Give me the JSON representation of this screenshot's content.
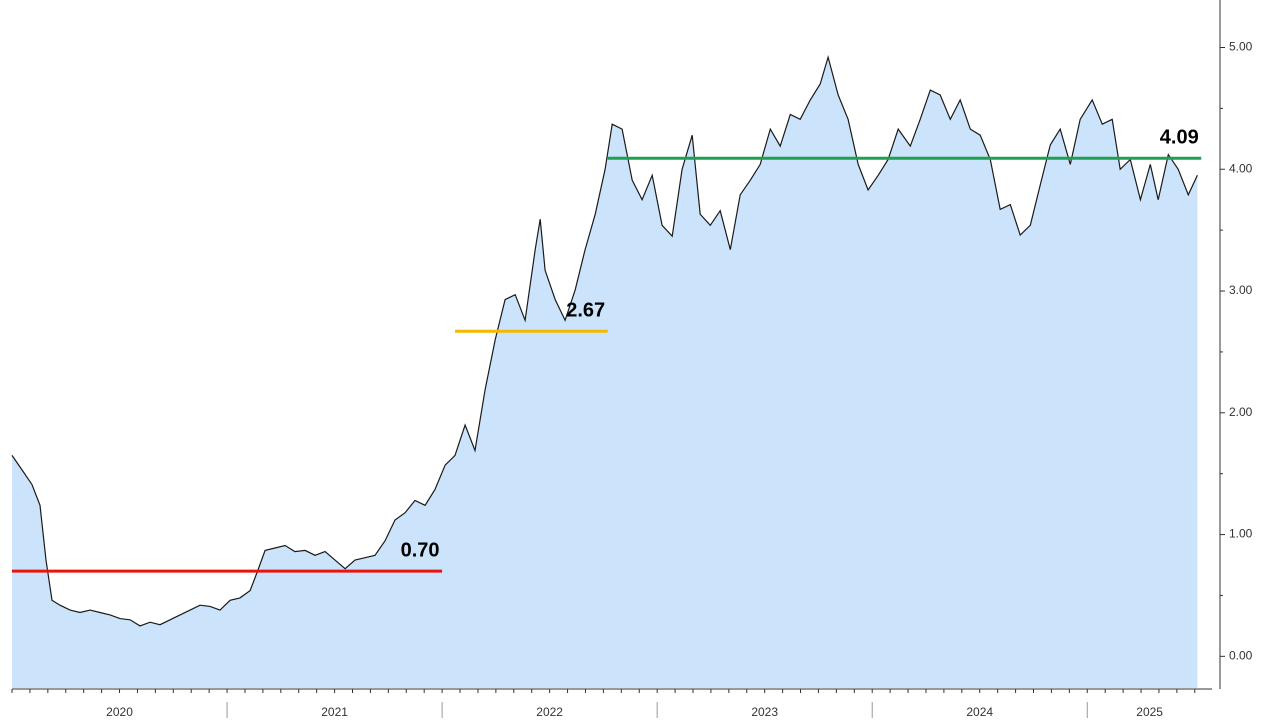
{
  "chart_data": {
    "type": "area",
    "categories": [
      "2020",
      "2021",
      "2022",
      "2023",
      "2024",
      "2025"
    ],
    "xlim": [
      2020,
      2025.58
    ],
    "ylim": [
      -0.26,
      5.39
    ],
    "yticks": [
      {
        "value": 0,
        "label": "0.00"
      },
      {
        "value": 1,
        "label": "1.00"
      },
      {
        "value": 2,
        "label": "2.00"
      },
      {
        "value": 3,
        "label": "3.00"
      },
      {
        "value": 4,
        "label": "4.00"
      },
      {
        "value": 5,
        "label": "5.00"
      }
    ],
    "series": [
      {
        "color": "#1a1a1a",
        "fill": "#cce4fb",
        "x": [
          2020.0,
          2020.047,
          2020.093,
          2020.13,
          2020.158,
          2020.186,
          2020.223,
          2020.27,
          2020.316,
          2020.363,
          2020.409,
          2020.456,
          2020.502,
          2020.549,
          2020.595,
          2020.642,
          2020.688,
          2020.735,
          2020.781,
          2020.828,
          2020.874,
          2020.921,
          2020.967,
          2021.014,
          2021.06,
          2021.107,
          2021.144,
          2021.177,
          2021.223,
          2021.27,
          2021.316,
          2021.363,
          2021.409,
          2021.456,
          2021.502,
          2021.549,
          2021.595,
          2021.642,
          2021.688,
          2021.735,
          2021.781,
          2021.828,
          2021.874,
          2021.921,
          2021.967,
          2022.014,
          2022.06,
          2022.107,
          2022.153,
          2022.2,
          2022.247,
          2022.293,
          2022.34,
          2022.386,
          2022.433,
          2022.456,
          2022.479,
          2022.526,
          2022.572,
          2022.619,
          2022.665,
          2022.712,
          2022.758,
          2022.791,
          2022.837,
          2022.884,
          2022.93,
          2022.977,
          2023.023,
          2023.07,
          2023.116,
          2023.163,
          2023.2,
          2023.247,
          2023.293,
          2023.34,
          2023.386,
          2023.433,
          2023.479,
          2023.526,
          2023.572,
          2023.619,
          2023.665,
          2023.712,
          2023.758,
          2023.795,
          2023.842,
          2023.888,
          2023.935,
          2023.981,
          2024.028,
          2024.074,
          2024.121,
          2024.177,
          2024.223,
          2024.27,
          2024.316,
          2024.363,
          2024.409,
          2024.456,
          2024.502,
          2024.549,
          2024.595,
          2024.642,
          2024.688,
          2024.735,
          2024.781,
          2024.828,
          2024.874,
          2024.921,
          2024.967,
          2025.023,
          2025.07,
          2025.116,
          2025.153,
          2025.2,
          2025.247,
          2025.293,
          2025.33,
          2025.377,
          2025.423,
          2025.47,
          2025.512
        ],
        "values": [
          1.65,
          1.53,
          1.41,
          1.24,
          0.79,
          0.46,
          0.42,
          0.38,
          0.36,
          0.38,
          0.36,
          0.34,
          0.31,
          0.3,
          0.25,
          0.28,
          0.26,
          0.3,
          0.34,
          0.38,
          0.42,
          0.41,
          0.38,
          0.46,
          0.48,
          0.54,
          0.71,
          0.87,
          0.89,
          0.91,
          0.86,
          0.87,
          0.83,
          0.86,
          0.79,
          0.72,
          0.79,
          0.81,
          0.83,
          0.95,
          1.12,
          1.18,
          1.28,
          1.24,
          1.37,
          1.57,
          1.65,
          1.9,
          1.69,
          2.19,
          2.6,
          2.93,
          2.97,
          2.76,
          3.34,
          3.59,
          3.17,
          2.93,
          2.76,
          3.01,
          3.34,
          3.63,
          4.0,
          4.37,
          4.33,
          3.91,
          3.75,
          3.95,
          3.54,
          3.45,
          4.0,
          4.28,
          3.63,
          3.54,
          3.66,
          3.34,
          3.79,
          3.91,
          4.04,
          4.33,
          4.19,
          4.45,
          4.41,
          4.57,
          4.7,
          4.92,
          4.61,
          4.41,
          4.04,
          3.83,
          3.95,
          4.08,
          4.33,
          4.19,
          4.41,
          4.65,
          4.61,
          4.41,
          4.57,
          4.33,
          4.28,
          4.08,
          3.67,
          3.71,
          3.46,
          3.54,
          3.87,
          4.2,
          4.33,
          4.04,
          4.41,
          4.57,
          4.37,
          4.41,
          4.0,
          4.08,
          3.75,
          4.04,
          3.75,
          4.12,
          4.0,
          3.79,
          3.95
        ]
      }
    ],
    "annotations": [
      {
        "value": 0.7,
        "label": "0.70",
        "x_range": [
          2020.0,
          2022.0
        ],
        "color": "#e8150f"
      },
      {
        "value": 2.67,
        "label": "2.67",
        "x_range": [
          2022.06,
          2022.77
        ],
        "color": "#f5b800"
      },
      {
        "value": 4.09,
        "label": "4.09",
        "x_range": [
          2022.77,
          2025.53
        ],
        "color": "#1fa050"
      }
    ]
  }
}
